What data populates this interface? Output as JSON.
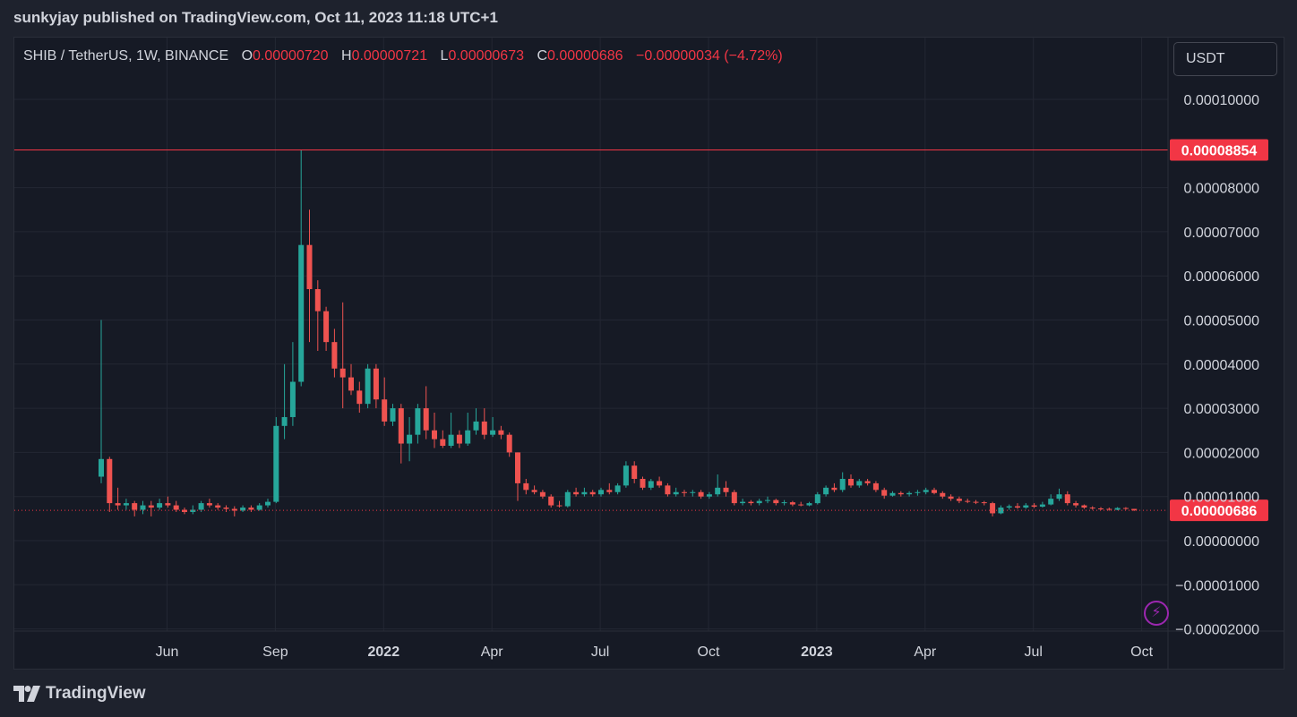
{
  "header": {
    "published": "sunkyjay published on TradingView.com, Oct 11, 2023 11:18 UTC+1"
  },
  "legend": {
    "symbol": "SHIB / TetherUS, 1W, BINANCE",
    "o_label": "O",
    "o_value": "0.00000720",
    "h_label": "H",
    "h_value": "0.00000721",
    "l_label": "L",
    "l_value": "0.00000673",
    "c_label": "C",
    "c_value": "0.00000686",
    "change": "−0.00000034 (−4.72%)"
  },
  "currency": "USDT",
  "footer": {
    "brand": "TradingView"
  },
  "colors": {
    "up": "#26a69a",
    "down": "#ef5350",
    "grid": "#232733",
    "text": "#d1d4dc",
    "marker": "#f23645"
  },
  "chart_data": {
    "type": "candlestick",
    "ylim": [
      -2e-05,
      0.000108
    ],
    "y_ticks": [
      {
        "value": 0.0001,
        "label": "0.00010000"
      },
      {
        "value": 8e-05,
        "label": "0.00008000"
      },
      {
        "value": 7e-05,
        "label": "0.00007000"
      },
      {
        "value": 6e-05,
        "label": "0.00006000"
      },
      {
        "value": 5e-05,
        "label": "0.00005000"
      },
      {
        "value": 4e-05,
        "label": "0.00004000"
      },
      {
        "value": 3e-05,
        "label": "0.00003000"
      },
      {
        "value": 2e-05,
        "label": "0.00002000"
      },
      {
        "value": 1e-05,
        "label": "0.00001000"
      },
      {
        "value": 0,
        "label": "0.00000000"
      },
      {
        "value": -1e-05,
        "label": "−0.00001000"
      },
      {
        "value": -2e-05,
        "label": "−0.00002000"
      }
    ],
    "x_ticks": [
      {
        "index": 5,
        "label": "Jun"
      },
      {
        "index": 18,
        "label": "Sep"
      },
      {
        "index": 31,
        "label": "2022"
      },
      {
        "index": 44,
        "label": "Apr"
      },
      {
        "index": 57,
        "label": "Jul"
      },
      {
        "index": 70,
        "label": "Oct"
      },
      {
        "index": 83,
        "label": "2023"
      },
      {
        "index": 96,
        "label": "Apr"
      },
      {
        "index": 109,
        "label": "Jul"
      },
      {
        "index": 122,
        "label": "Oct"
      }
    ],
    "price_labels": [
      {
        "value": 8.854e-05,
        "label": "0.00008854",
        "style": "solid"
      },
      {
        "value": 6.86e-06,
        "label": "0.00000686",
        "style": "dotted"
      }
    ],
    "candles": [
      [
        1.45e-05,
        1.85e-05,
        5e-05,
        1.3e-05
      ],
      [
        1.85e-05,
        8.5e-06,
        1.9e-05,
        6.5e-06
      ],
      [
        8.5e-06,
        8e-06,
        1.2e-05,
        7e-06
      ],
      [
        8e-06,
        8.5e-06,
        9.5e-06,
        7e-06
      ],
      [
        8.5e-06,
        7e-06,
        9e-06,
        5.5e-06
      ],
      [
        7e-06,
        8e-06,
        9e-06,
        6e-06
      ],
      [
        8e-06,
        7.5e-06,
        9e-06,
        5.5e-06
      ],
      [
        7.5e-06,
        8.5e-06,
        9.5e-06,
        7e-06
      ],
      [
        8.5e-06,
        8e-06,
        1e-05,
        7.5e-06
      ],
      [
        8e-06,
        7e-06,
        9e-06,
        6.5e-06
      ],
      [
        7e-06,
        6.5e-06,
        7.5e-06,
        6e-06
      ],
      [
        6.5e-06,
        7e-06,
        8e-06,
        6e-06
      ],
      [
        7e-06,
        8.5e-06,
        9e-06,
        6.5e-06
      ],
      [
        8.5e-06,
        8e-06,
        9.5e-06,
        7.5e-06
      ],
      [
        8e-06,
        7.5e-06,
        8.5e-06,
        7e-06
      ],
      [
        7.5e-06,
        7.2e-06,
        8e-06,
        6.5e-06
      ],
      [
        7.2e-06,
        6.8e-06,
        7.8e-06,
        5.5e-06
      ],
      [
        6.8e-06,
        7.5e-06,
        8e-06,
        6.5e-06
      ],
      [
        7.5e-06,
        7e-06,
        8e-06,
        6.5e-06
      ],
      [
        7e-06,
        8e-06,
        8.5e-06,
        6.8e-06
      ],
      [
        8e-06,
        8.8e-06,
        9.5e-06,
        7.5e-06
      ],
      [
        8.8e-06,
        2.6e-05,
        2.8e-05,
        8.5e-06
      ],
      [
        2.6e-05,
        2.8e-05,
        4e-05,
        2.3e-05
      ],
      [
        2.8e-05,
        3.6e-05,
        4.5e-05,
        2.6e-05
      ],
      [
        3.6e-05,
        6.7e-05,
        8.85e-05,
        3.5e-05
      ],
      [
        6.7e-05,
        5.7e-05,
        7.5e-05,
        4.5e-05
      ],
      [
        5.7e-05,
        5.2e-05,
        5.9e-05,
        4.3e-05
      ],
      [
        5.2e-05,
        4.5e-05,
        5.3e-05,
        4.3e-05
      ],
      [
        4.5e-05,
        3.9e-05,
        4.8e-05,
        3.7e-05
      ],
      [
        3.9e-05,
        3.7e-05,
        5.4e-05,
        3e-05
      ],
      [
        3.7e-05,
        3.4e-05,
        4e-05,
        3.3e-05
      ],
      [
        3.4e-05,
        3.1e-05,
        3.6e-05,
        2.9e-05
      ],
      [
        3.1e-05,
        3.9e-05,
        4e-05,
        3e-05
      ],
      [
        3.9e-05,
        3.2e-05,
        4e-05,
        3e-05
      ],
      [
        3.2e-05,
        2.7e-05,
        3.7e-05,
        2.6e-05
      ],
      [
        2.7e-05,
        3e-05,
        3.1e-05,
        2.6e-05
      ],
      [
        3e-05,
        2.2e-05,
        3.1e-05,
        1.75e-05
      ],
      [
        2.2e-05,
        2.4e-05,
        2.8e-05,
        1.8e-05
      ],
      [
        2.4e-05,
        3e-05,
        3.1e-05,
        2.2e-05
      ],
      [
        3e-05,
        2.5e-05,
        3.5e-05,
        2.3e-05
      ],
      [
        2.5e-05,
        2.3e-05,
        2.9e-05,
        2.1e-05
      ],
      [
        2.3e-05,
        2.15e-05,
        2.5e-05,
        2.1e-05
      ],
      [
        2.15e-05,
        2.4e-05,
        2.9e-05,
        2.1e-05
      ],
      [
        2.4e-05,
        2.2e-05,
        2.5e-05,
        2.1e-05
      ],
      [
        2.2e-05,
        2.5e-05,
        2.9e-05,
        2.15e-05
      ],
      [
        2.5e-05,
        2.7e-05,
        3e-05,
        2.4e-05
      ],
      [
        2.7e-05,
        2.4e-05,
        3e-05,
        2.3e-05
      ],
      [
        2.4e-05,
        2.5e-05,
        2.8e-05,
        2.35e-05
      ],
      [
        2.5e-05,
        2.4e-05,
        2.6e-05,
        2.3e-05
      ],
      [
        2.4e-05,
        2e-05,
        2.45e-05,
        1.9e-05
      ],
      [
        2e-05,
        1.3e-05,
        2e-05,
        9e-06
      ],
      [
        1.3e-05,
        1.15e-05,
        1.4e-05,
        1.05e-05
      ],
      [
        1.15e-05,
        1.1e-05,
        1.25e-05,
        1.05e-05
      ],
      [
        1.1e-05,
        1e-05,
        1.15e-05,
        9.5e-06
      ],
      [
        1e-05,
        8e-06,
        1.05e-05,
        7.5e-06
      ],
      [
        8e-06,
        7.8e-06,
        9e-06,
        7.5e-06
      ],
      [
        7.8e-06,
        1.1e-05,
        1.15e-05,
        7.5e-06
      ],
      [
        1.1e-05,
        1.05e-05,
        1.2e-05,
        1e-05
      ],
      [
        1.05e-05,
        1.1e-05,
        1.2e-05,
        1e-05
      ],
      [
        1.1e-05,
        1.05e-05,
        1.15e-05,
        1e-05
      ],
      [
        1.05e-05,
        1.15e-05,
        1.2e-05,
        1e-05
      ],
      [
        1.15e-05,
        1.1e-05,
        1.3e-05,
        1.05e-05
      ],
      [
        1.1e-05,
        1.25e-05,
        1.3e-05,
        1.05e-05
      ],
      [
        1.25e-05,
        1.7e-05,
        1.8e-05,
        1.2e-05
      ],
      [
        1.7e-05,
        1.4e-05,
        1.8e-05,
        1.3e-05
      ],
      [
        1.4e-05,
        1.2e-05,
        1.45e-05,
        1.15e-05
      ],
      [
        1.2e-05,
        1.35e-05,
        1.4e-05,
        1.15e-05
      ],
      [
        1.35e-05,
        1.25e-05,
        1.45e-05,
        1.2e-05
      ],
      [
        1.25e-05,
        1.05e-05,
        1.3e-05,
        1e-05
      ],
      [
        1.05e-05,
        1.1e-05,
        1.2e-05,
        1e-05
      ],
      [
        1.1e-05,
        1.08e-05,
        1.15e-05,
        1e-05
      ],
      [
        1.08e-05,
        1.1e-05,
        1.15e-05,
        1e-05
      ],
      [
        1.1e-05,
        1e-05,
        1.15e-05,
        9.5e-06
      ],
      [
        1e-05,
        1.05e-05,
        1.1e-05,
        9.5e-06
      ],
      [
        1.05e-05,
        1.2e-05,
        1.5e-05,
        1e-05
      ],
      [
        1.2e-05,
        1.1e-05,
        1.35e-05,
        1e-05
      ],
      [
        1.1e-05,
        8.5e-06,
        1.15e-05,
        8e-06
      ],
      [
        8.5e-06,
        8.8e-06,
        9.5e-06,
        8e-06
      ],
      [
        8.8e-06,
        8.5e-06,
        9.2e-06,
        8e-06
      ],
      [
        8.5e-06,
        9e-06,
        9.5e-06,
        8e-06
      ],
      [
        9e-06,
        9.2e-06,
        1e-05,
        8.5e-06
      ],
      [
        9.2e-06,
        8.5e-06,
        9.5e-06,
        8e-06
      ],
      [
        8.5e-06,
        8.7e-06,
        9.2e-06,
        8e-06
      ],
      [
        8.7e-06,
        8.2e-06,
        9e-06,
        7.8e-06
      ],
      [
        8.2e-06,
        8e-06,
        8.8e-06,
        7.8e-06
      ],
      [
        8e-06,
        8.5e-06,
        8.8e-06,
        7.8e-06
      ],
      [
        8.5e-06,
        1.05e-05,
        1.1e-05,
        8.2e-06
      ],
      [
        1.05e-05,
        1.2e-05,
        1.25e-05,
        1e-05
      ],
      [
        1.2e-05,
        1.15e-05,
        1.3e-05,
        1.1e-05
      ],
      [
        1.15e-05,
        1.4e-05,
        1.55e-05,
        1.1e-05
      ],
      [
        1.4e-05,
        1.25e-05,
        1.5e-05,
        1.2e-05
      ],
      [
        1.25e-05,
        1.35e-05,
        1.4e-05,
        1.2e-05
      ],
      [
        1.35e-05,
        1.3e-05,
        1.4e-05,
        1.25e-05
      ],
      [
        1.3e-05,
        1.15e-05,
        1.35e-05,
        1.1e-05
      ],
      [
        1.15e-05,
        1.02e-05,
        1.2e-05,
        9.5e-06
      ],
      [
        1.02e-05,
        1.08e-05,
        1.12e-05,
        1e-05
      ],
      [
        1.08e-05,
        1.05e-05,
        1.12e-05,
        1e-05
      ],
      [
        1.05e-05,
        1.08e-05,
        1.12e-05,
        1e-05
      ],
      [
        1.08e-05,
        1.1e-05,
        1.15e-05,
        1.02e-05
      ],
      [
        1.1e-05,
        1.15e-05,
        1.2e-05,
        1.05e-05
      ],
      [
        1.15e-05,
        1.08e-05,
        1.2e-05,
        1.05e-05
      ],
      [
        1.08e-05,
        1e-05,
        1.12e-05,
        9.5e-06
      ],
      [
        1e-05,
        9.5e-06,
        1.05e-05,
        9e-06
      ],
      [
        9.5e-06,
        9e-06,
        1e-05,
        8.5e-06
      ],
      [
        9e-06,
        8.8e-06,
        9.5e-06,
        8.5e-06
      ],
      [
        8.8e-06,
        8.7e-06,
        9.2e-06,
        8.3e-06
      ],
      [
        8.7e-06,
        8.5e-06,
        9e-06,
        8e-06
      ],
      [
        8.5e-06,
        6.2e-06,
        8.8e-06,
        5.5e-06
      ],
      [
        6.2e-06,
        7.5e-06,
        8e-06,
        6e-06
      ],
      [
        7.5e-06,
        7.8e-06,
        8.2e-06,
        7e-06
      ],
      [
        7.8e-06,
        7.5e-06,
        8.5e-06,
        7.2e-06
      ],
      [
        7.5e-06,
        8e-06,
        8.5e-06,
        7.2e-06
      ],
      [
        8e-06,
        7.7e-06,
        8.5e-06,
        7.4e-06
      ],
      [
        7.7e-06,
        8.2e-06,
        8.8e-06,
        7.5e-06
      ],
      [
        8.2e-06,
        9.5e-06,
        1.05e-05,
        8e-06
      ],
      [
        9.5e-06,
        1.05e-05,
        1.18e-05,
        9e-06
      ],
      [
        1.05e-05,
        8.5e-06,
        1.12e-05,
        8e-06
      ],
      [
        8.5e-06,
        8e-06,
        9e-06,
        7.5e-06
      ],
      [
        8e-06,
        7.5e-06,
        8.2e-06,
        7.2e-06
      ],
      [
        7.5e-06,
        7.3e-06,
        7.8e-06,
        7e-06
      ],
      [
        7.3e-06,
        7.2e-06,
        7.6e-06,
        6.9e-06
      ],
      [
        7.2e-06,
        7e-06,
        7.5e-06,
        6.8e-06
      ],
      [
        7e-06,
        7.4e-06,
        7.6e-06,
        6.9e-06
      ],
      [
        7.4e-06,
        7.2e-06,
        7.6e-06,
        7e-06
      ],
      [
        7.2e-06,
        6.86e-06,
        7.21e-06,
        6.73e-06
      ]
    ]
  }
}
